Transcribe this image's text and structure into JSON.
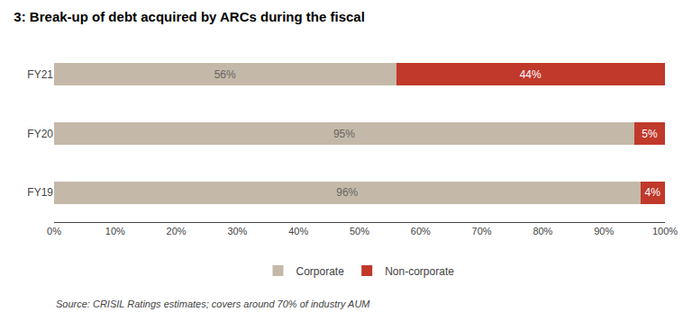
{
  "chart_data": {
    "type": "bar",
    "title": "3: Break-up of debt acquired by ARCs during the fiscal",
    "orientation": "horizontal",
    "stacked": true,
    "data_labels": true,
    "categories": [
      "FY21",
      "FY20",
      "FY19"
    ],
    "series": [
      {
        "name": "Corporate",
        "color": "#C4B9A8",
        "values": [
          56,
          95,
          96
        ],
        "value_labels": [
          "56%",
          "95%",
          "96%"
        ]
      },
      {
        "name": "Non-corporate",
        "color": "#C0392B",
        "values": [
          44,
          5,
          4
        ],
        "value_labels": [
          "44%",
          "5%",
          "4%"
        ]
      }
    ],
    "xlim": [
      0,
      100
    ],
    "xticks": [
      {
        "value": 0,
        "label": "0%"
      },
      {
        "value": 10,
        "label": "10%"
      },
      {
        "value": 20,
        "label": "20%"
      },
      {
        "value": 30,
        "label": "30%"
      },
      {
        "value": 40,
        "label": "40%"
      },
      {
        "value": 50,
        "label": "50%"
      },
      {
        "value": 60,
        "label": "60%"
      },
      {
        "value": 70,
        "label": "70%"
      },
      {
        "value": 80,
        "label": "80%"
      },
      {
        "value": 90,
        "label": "90%"
      },
      {
        "value": 100,
        "label": "100%"
      }
    ],
    "grid": false,
    "legend": "bottom",
    "annotations": [
      "Source: CRISIL Ratings estimates; covers around 70% of industry AUM"
    ]
  }
}
